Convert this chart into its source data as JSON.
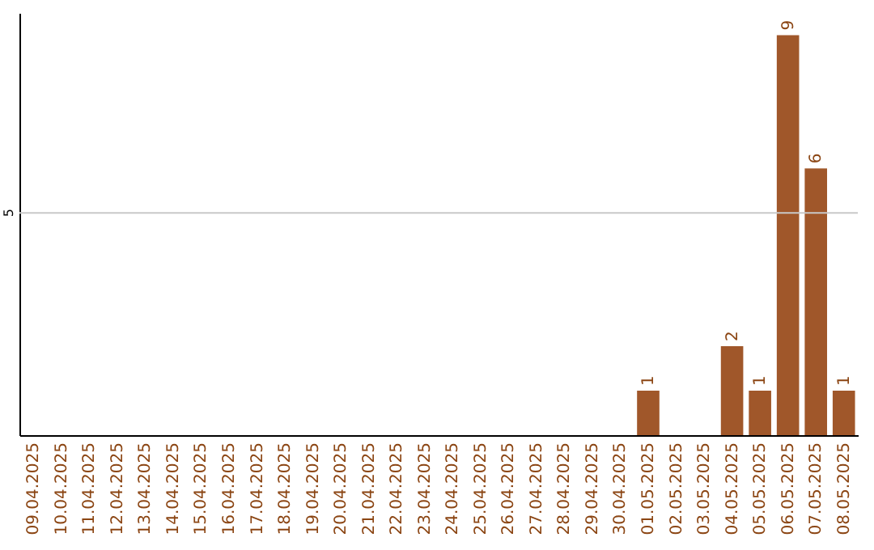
{
  "chart_data": {
    "type": "bar",
    "categories": [
      "09.04.2025",
      "10.04.2025",
      "11.04.2025",
      "12.04.2025",
      "13.04.2025",
      "14.04.2025",
      "15.04.2025",
      "16.04.2025",
      "17.04.2025",
      "18.04.2025",
      "19.04.2025",
      "20.04.2025",
      "21.04.2025",
      "22.04.2025",
      "23.04.2025",
      "24.04.2025",
      "25.04.2025",
      "26.04.2025",
      "27.04.2025",
      "28.04.2025",
      "29.04.2025",
      "30.04.2025",
      "01.05.2025",
      "02.05.2025",
      "03.05.2025",
      "04.05.2025",
      "05.05.2025",
      "06.05.2025",
      "07.05.2025",
      "08.05.2025"
    ],
    "values": [
      null,
      null,
      null,
      null,
      null,
      null,
      null,
      null,
      null,
      null,
      null,
      null,
      null,
      null,
      null,
      null,
      null,
      null,
      null,
      null,
      null,
      null,
      1,
      null,
      null,
      2,
      1,
      9,
      6,
      1
    ],
    "data_labels": true,
    "color": "#a0572a",
    "ylim": [
      0,
      9.5
    ],
    "ref_lines": [
      {
        "axis": "y",
        "value": 5,
        "label": "5",
        "color": "#c8c8c8"
      }
    ]
  }
}
